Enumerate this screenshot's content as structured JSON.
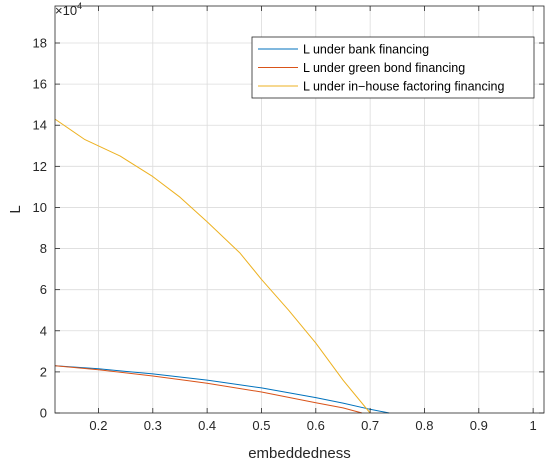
{
  "chart_data": {
    "type": "line",
    "title": "",
    "xlabel": "embeddedness",
    "ylabel": "L",
    "y_multiplier_base": "×10",
    "y_multiplier_exp": "4",
    "xlim": [
      0.12,
      1.02
    ],
    "ylim": [
      0,
      19.8
    ],
    "x_ticks": [
      0.2,
      0.3,
      0.4,
      0.5,
      0.6,
      0.7,
      0.8,
      0.9,
      1
    ],
    "x_tick_labels": [
      "0.2",
      "0.3",
      "0.4",
      "0.5",
      "0.6",
      "0.7",
      "0.8",
      "0.9",
      "1"
    ],
    "y_ticks": [
      0,
      2,
      4,
      6,
      8,
      10,
      12,
      14,
      16,
      18
    ],
    "y_tick_labels": [
      "0",
      "2",
      "4",
      "6",
      "8",
      "10",
      "12",
      "14",
      "16",
      "18"
    ],
    "grid": true,
    "legend_position": "top-right",
    "series": [
      {
        "name": "L under bank financing",
        "color": "#0072BD",
        "x": [
          0.12,
          0.2,
          0.3,
          0.4,
          0.5,
          0.6,
          0.65,
          0.7,
          0.735
        ],
        "y": [
          2.3,
          2.15,
          1.9,
          1.6,
          1.22,
          0.75,
          0.48,
          0.18,
          0.0
        ]
      },
      {
        "name": "L under green bond financing",
        "color": "#D95319",
        "x": [
          0.12,
          0.2,
          0.3,
          0.4,
          0.5,
          0.6,
          0.65,
          0.685
        ],
        "y": [
          2.3,
          2.1,
          1.8,
          1.45,
          1.02,
          0.5,
          0.25,
          0.0
        ]
      },
      {
        "name": "L under in−house factoring financing",
        "color": "#EDB120",
        "x": [
          0.12,
          0.175,
          0.24,
          0.3,
          0.35,
          0.4,
          0.46,
          0.5,
          0.55,
          0.6,
          0.65,
          0.7
        ],
        "y": [
          14.3,
          13.3,
          12.5,
          11.5,
          10.5,
          9.3,
          7.8,
          6.5,
          5.0,
          3.4,
          1.6,
          0.0
        ]
      }
    ]
  }
}
